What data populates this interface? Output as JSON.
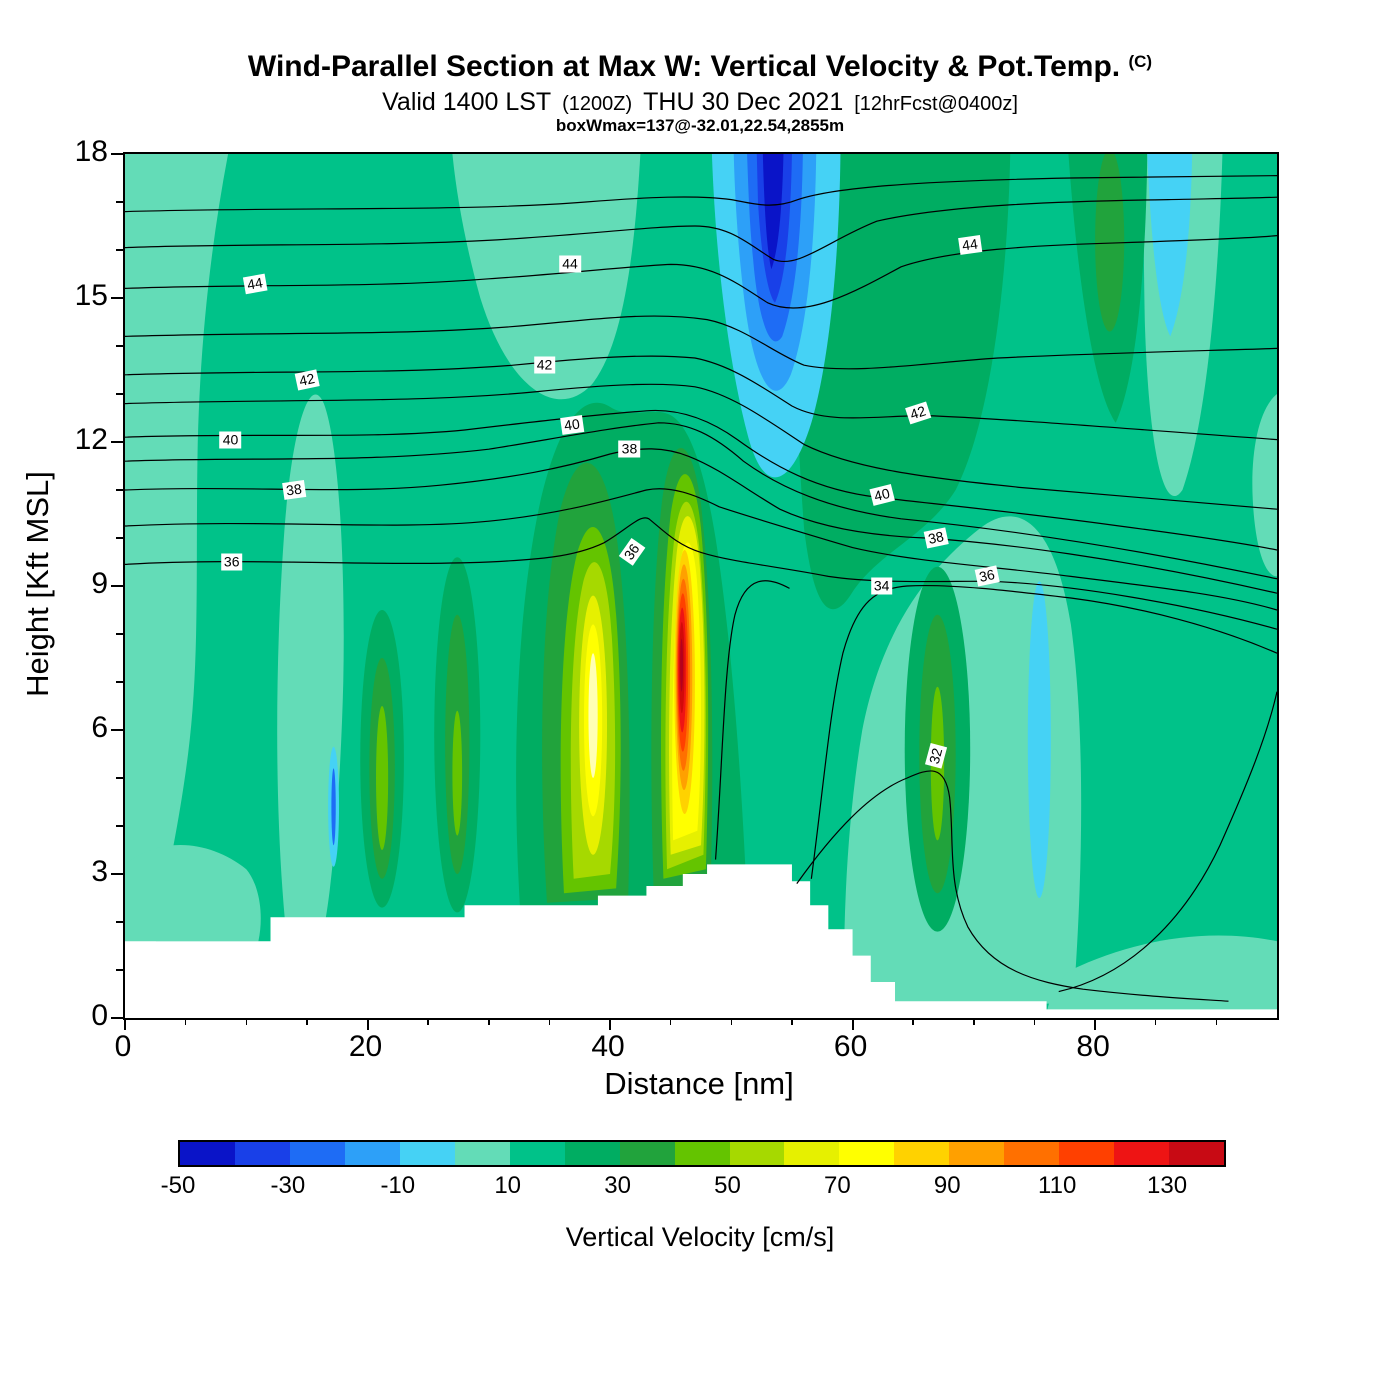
{
  "figure": {
    "title": {
      "main": "Wind-Parallel Section at Max W: Vertical Velocity & Pot.Temp.",
      "suffix": "(C)"
    },
    "subtitle": {
      "part1": "Valid 1400 LST",
      "paren": "(1200Z)",
      "part2": "THU 30 Dec 2021",
      "bracket": "[12hrFcst@0400z]"
    },
    "info_line": "boxWmax=137@-32.01,22.54,2855m"
  },
  "chart_data": {
    "type": "heatmap",
    "title": "Wind-Parallel Section at Max W: Vertical Velocity & Pot.Temp. (C)",
    "x_axis": {
      "label": "Distance [nm]",
      "range": [
        0,
        95
      ],
      "major_ticks": [
        0,
        20,
        40,
        60,
        80
      ],
      "minor_step": 5
    },
    "y_axis": {
      "label": "Height [Kft MSL]",
      "range": [
        0,
        18
      ],
      "major_ticks": [
        0,
        3,
        6,
        9,
        12,
        15,
        18
      ],
      "minor_step": 1
    },
    "filled_field": {
      "name": "Vertical Velocity",
      "units": "cm/s",
      "level_step": 10,
      "min_level": -50,
      "max_level": 140,
      "annotated_max": 137
    },
    "contour_field": {
      "name": "Potential Temperature",
      "units": "C",
      "labeled_levels": [
        32,
        34,
        36,
        38,
        40,
        42,
        44
      ],
      "labels": [
        {
          "text": "44",
          "x": 10.7,
          "z": 15.3,
          "rot": -10
        },
        {
          "text": "44",
          "x": 36.7,
          "z": 15.7,
          "rot": 0
        },
        {
          "text": "44",
          "x": 69.7,
          "z": 16.1,
          "rot": -8
        },
        {
          "text": "42",
          "x": 15.0,
          "z": 13.3,
          "rot": -12
        },
        {
          "text": "42",
          "x": 34.6,
          "z": 13.6,
          "rot": 0
        },
        {
          "text": "42",
          "x": 65.4,
          "z": 12.6,
          "rot": -18
        },
        {
          "text": "40",
          "x": 8.7,
          "z": 12.05,
          "rot": 0
        },
        {
          "text": "40",
          "x": 36.9,
          "z": 12.35,
          "rot": -8
        },
        {
          "text": "40",
          "x": 62.4,
          "z": 10.9,
          "rot": -14
        },
        {
          "text": "38",
          "x": 13.9,
          "z": 11.0,
          "rot": -8
        },
        {
          "text": "38",
          "x": 41.6,
          "z": 11.85,
          "rot": 0
        },
        {
          "text": "38",
          "x": 66.9,
          "z": 10.0,
          "rot": -12
        },
        {
          "text": "36",
          "x": 8.8,
          "z": 9.5,
          "rot": 0
        },
        {
          "text": "36",
          "x": 41.8,
          "z": 9.7,
          "rot": -55
        },
        {
          "text": "36",
          "x": 71.1,
          "z": 9.2,
          "rot": -12
        },
        {
          "text": "34",
          "x": 62.4,
          "z": 9.0,
          "rot": 0
        },
        {
          "text": "32",
          "x": 66.9,
          "z": 5.45,
          "rot": -75
        }
      ]
    },
    "colorbar": {
      "title": "Vertical Velocity [cm/s]",
      "range": [
        -50,
        140
      ],
      "tick_values": [
        -50,
        -30,
        -10,
        10,
        30,
        50,
        70,
        90,
        110,
        130
      ],
      "colors": [
        "#0a14c8",
        "#1940e8",
        "#1e6cf5",
        "#2da0f8",
        "#45d2f5",
        "#63dcb7",
        "#00c289",
        "#00ad62",
        "#21a33c",
        "#64c400",
        "#a6d900",
        "#e6f000",
        "#ffff00",
        "#ffd200",
        "#ffa000",
        "#ff7000",
        "#ff4000",
        "#ee1414",
        "#c80a14"
      ]
    }
  }
}
